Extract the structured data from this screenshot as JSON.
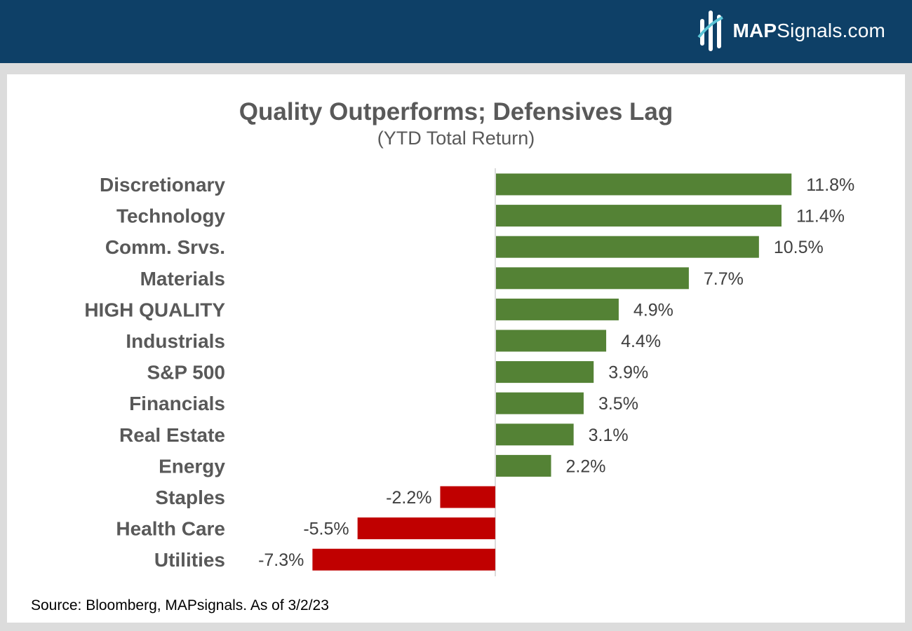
{
  "header": {
    "logo_bold": "MAP",
    "logo_rest": "Signals.com"
  },
  "colors": {
    "header_bg": "#0e4067",
    "positive": "#548235",
    "negative": "#c00000"
  },
  "chart_data": {
    "type": "bar",
    "orientation": "horizontal",
    "title": "Quality Outperforms; Defensives Lag",
    "subtitle": "(YTD Total Return)",
    "categories": [
      "Discretionary",
      "Technology",
      "Comm. Srvs.",
      "Materials",
      "HIGH QUALITY",
      "Industrials",
      "S&P 500",
      "Financials",
      "Real Estate",
      "Energy",
      "Staples",
      "Health Care",
      "Utilities"
    ],
    "values": [
      11.8,
      11.4,
      10.5,
      7.7,
      4.9,
      4.4,
      3.9,
      3.5,
      3.1,
      2.2,
      -2.2,
      -5.5,
      -7.3
    ],
    "value_labels": [
      "11.8%",
      "11.4%",
      "10.5%",
      "7.7%",
      "4.9%",
      "4.4%",
      "3.9%",
      "3.5%",
      "3.1%",
      "2.2%",
      "-2.2%",
      "-5.5%",
      "-7.3%"
    ],
    "grid": false,
    "legend": "none"
  },
  "source": "Source: Bloomberg, MAPsignals. As of 3/2/23"
}
